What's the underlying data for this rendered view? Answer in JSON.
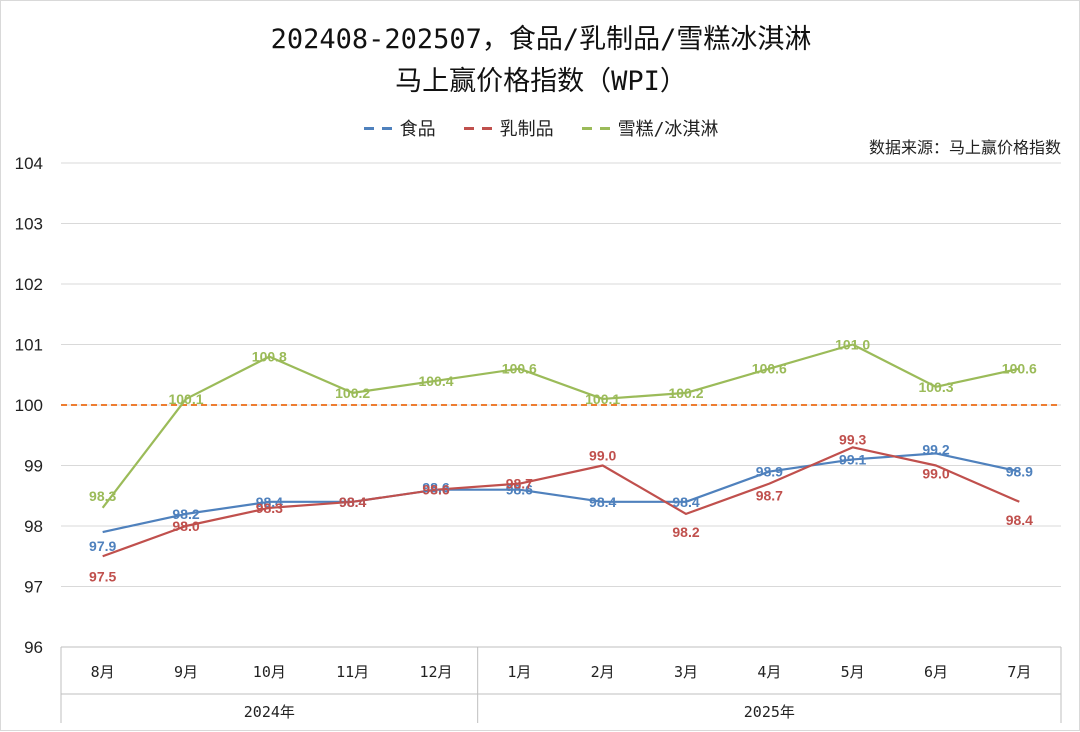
{
  "title_line1": "202408-202507，食品/乳制品/雪糕冰淇淋",
  "title_line2": "马上赢价格指数（WPI）",
  "source": "数据来源：马上赢价格指数",
  "chart_data": {
    "type": "line",
    "title": "202408-202507，食品/乳制品/雪糕冰淇淋 马上赢价格指数（WPI）",
    "categories": [
      "8月",
      "9月",
      "10月",
      "11月",
      "12月",
      "1月",
      "2月",
      "3月",
      "4月",
      "5月",
      "6月",
      "7月"
    ],
    "year_groups": [
      {
        "label": "2024年",
        "count": 5
      },
      {
        "label": "2025年",
        "count": 7
      }
    ],
    "ylim": [
      96,
      104
    ],
    "yticks": [
      96,
      97,
      98,
      99,
      100,
      101,
      102,
      103,
      104
    ],
    "grid": true,
    "reference_line": {
      "value": 100,
      "color": "#ed7d31"
    },
    "legend_position": "top",
    "series": [
      {
        "name": "食品",
        "color": "#4f81bd",
        "values": [
          97.9,
          98.2,
          98.4,
          98.4,
          98.6,
          98.6,
          98.4,
          98.4,
          98.9,
          99.1,
          99.2,
          98.9
        ],
        "labels": [
          "97.9",
          "98.2",
          "98.4",
          "98.4",
          "98.6",
          "98.6",
          "98.4",
          "98.4",
          "98.9",
          "99.1",
          "99.2",
          "98.9"
        ]
      },
      {
        "name": "乳制品",
        "color": "#c0504d",
        "values": [
          97.5,
          98.0,
          98.3,
          98.4,
          98.6,
          98.7,
          99.0,
          98.2,
          98.7,
          99.3,
          99.0,
          98.4
        ],
        "labels": [
          "97.5",
          "98.0",
          "98.3",
          "98.4",
          "98.6",
          "98.7",
          "99.0",
          "98.2",
          "98.7",
          "99.3",
          "99.0",
          "98.4"
        ]
      },
      {
        "name": "雪糕/冰淇淋",
        "color": "#9bbb59",
        "values": [
          98.3,
          100.1,
          100.8,
          100.2,
          100.4,
          100.6,
          100.1,
          100.2,
          100.6,
          101.0,
          100.3,
          100.6
        ],
        "labels": [
          "98.3",
          "100.1",
          "100.8",
          "100.2",
          "100.4",
          "100.6",
          "100.1",
          "100.2",
          "100.6",
          "101.0",
          "100.3",
          "100.6"
        ]
      }
    ]
  }
}
